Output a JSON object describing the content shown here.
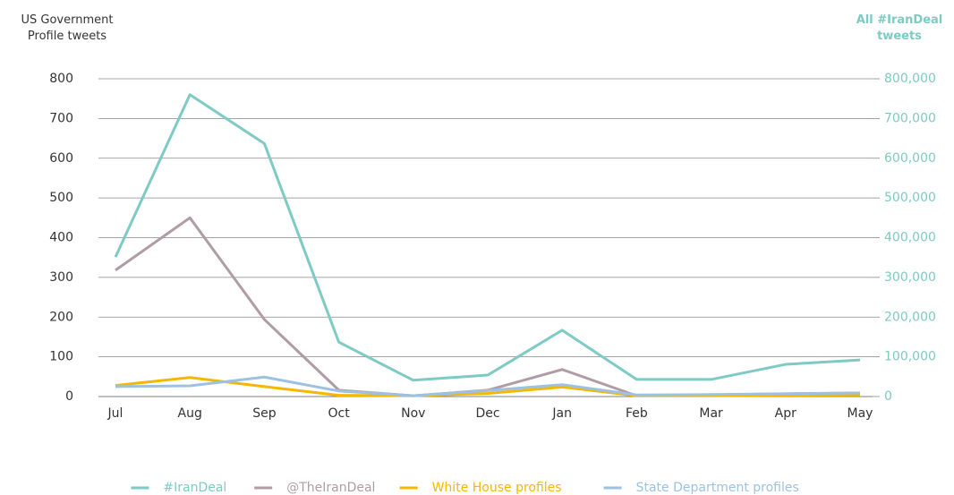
{
  "chart_data": {
    "type": "line",
    "y_label": "US Government Profile tweets",
    "y2_label": "All #IranDeal tweets",
    "categories": [
      "Jul",
      "Aug",
      "Sep",
      "Oct",
      "Nov",
      "Dec",
      "Jan",
      "Feb",
      "Mar",
      "Apr",
      "May"
    ],
    "ylim": [
      0,
      800
    ],
    "yticks": [
      0,
      100,
      200,
      300,
      400,
      500,
      600,
      700,
      800
    ],
    "y2lim": [
      0,
      800000
    ],
    "y2ticks": [
      0,
      {
        "value": 100000,
        "label": "100,000"
      },
      {
        "value": 200000,
        "label": "200,000"
      },
      {
        "value": 300000,
        "label": "300,000"
      },
      {
        "value": 400000,
        "label": "400,000"
      },
      {
        "value": 500000,
        "label": "500,000"
      },
      {
        "value": 600000,
        "label": "600,000"
      },
      {
        "value": 700000,
        "label": "700,000"
      },
      {
        "value": 800000,
        "label": "800,000"
      }
    ],
    "grid": true,
    "legend": "bottom",
    "series": [
      {
        "name": "#IranDeal",
        "color": "#7ecac4",
        "axis": "y2",
        "values": [
          351000,
          760000,
          637000,
          137000,
          41000,
          54000,
          167000,
          43000,
          43000,
          81000,
          92000
        ]
      },
      {
        "name": "@TheIranDeal",
        "color": "#b09ca5",
        "values": [
          318,
          450,
          194,
          16,
          2,
          16,
          68,
          2,
          4,
          7,
          9
        ]
      },
      {
        "name": "White House profiles",
        "color": "#f5b800",
        "values": [
          28,
          48,
          25,
          3,
          2,
          8,
          24,
          2,
          2,
          3,
          4
        ]
      },
      {
        "name": "State Department profiles",
        "color": "#9dc1e0",
        "values": [
          25,
          27,
          49,
          14,
          2,
          15,
          30,
          4,
          5,
          7,
          9
        ]
      }
    ]
  }
}
